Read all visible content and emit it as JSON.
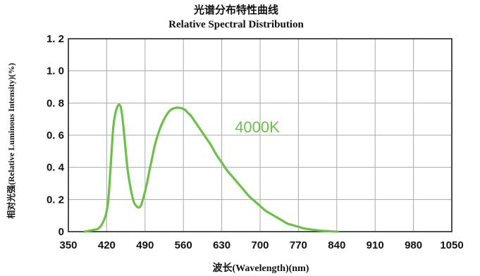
{
  "chart_data": {
    "type": "line",
    "title": "光谱分布特性曲线",
    "subtitle": "Relative Spectral Distribution",
    "xlabel": "波长(Wavelength)(nm)",
    "ylabel": "相对光强(Relative Luminous Intensity)(%)",
    "xlim": [
      350,
      1050
    ],
    "ylim": [
      0,
      1.2
    ],
    "x_ticks": [
      "350",
      "420",
      "490",
      "560",
      "630",
      "700",
      "770",
      "840",
      "910",
      "980",
      "1050"
    ],
    "y_ticks": [
      "0",
      "0. 2",
      "0. 4",
      "0. 6",
      "0. 8",
      "1. 0",
      "1. 2"
    ],
    "grid": true,
    "series_color": "#6cc04a",
    "series": [
      {
        "name": "4000K",
        "x": [
          380,
          395,
          405,
          412,
          418,
          423,
          428,
          432,
          436,
          440,
          443,
          446,
          449,
          452,
          455,
          458,
          462,
          466,
          470,
          474,
          478,
          482,
          486,
          490,
          494,
          498,
          503,
          508,
          515,
          522,
          530,
          538,
          546,
          554,
          562,
          568,
          574,
          580,
          590,
          600,
          610,
          620,
          630,
          640,
          650,
          660,
          670,
          680,
          690,
          700,
          710,
          720,
          730,
          740,
          750,
          760,
          770,
          780,
          790,
          800,
          815,
          830,
          842
        ],
        "y": [
          0.0,
          0.01,
          0.02,
          0.05,
          0.1,
          0.2,
          0.45,
          0.65,
          0.74,
          0.78,
          0.79,
          0.77,
          0.7,
          0.6,
          0.49,
          0.39,
          0.3,
          0.23,
          0.18,
          0.16,
          0.15,
          0.16,
          0.2,
          0.25,
          0.31,
          0.38,
          0.46,
          0.54,
          0.62,
          0.68,
          0.73,
          0.76,
          0.77,
          0.77,
          0.76,
          0.74,
          0.72,
          0.69,
          0.64,
          0.59,
          0.54,
          0.48,
          0.43,
          0.38,
          0.34,
          0.3,
          0.26,
          0.22,
          0.19,
          0.16,
          0.13,
          0.11,
          0.09,
          0.07,
          0.05,
          0.04,
          0.03,
          0.02,
          0.015,
          0.01,
          0.005,
          0.002,
          0.0
        ]
      }
    ],
    "series_label": "4000K"
  }
}
